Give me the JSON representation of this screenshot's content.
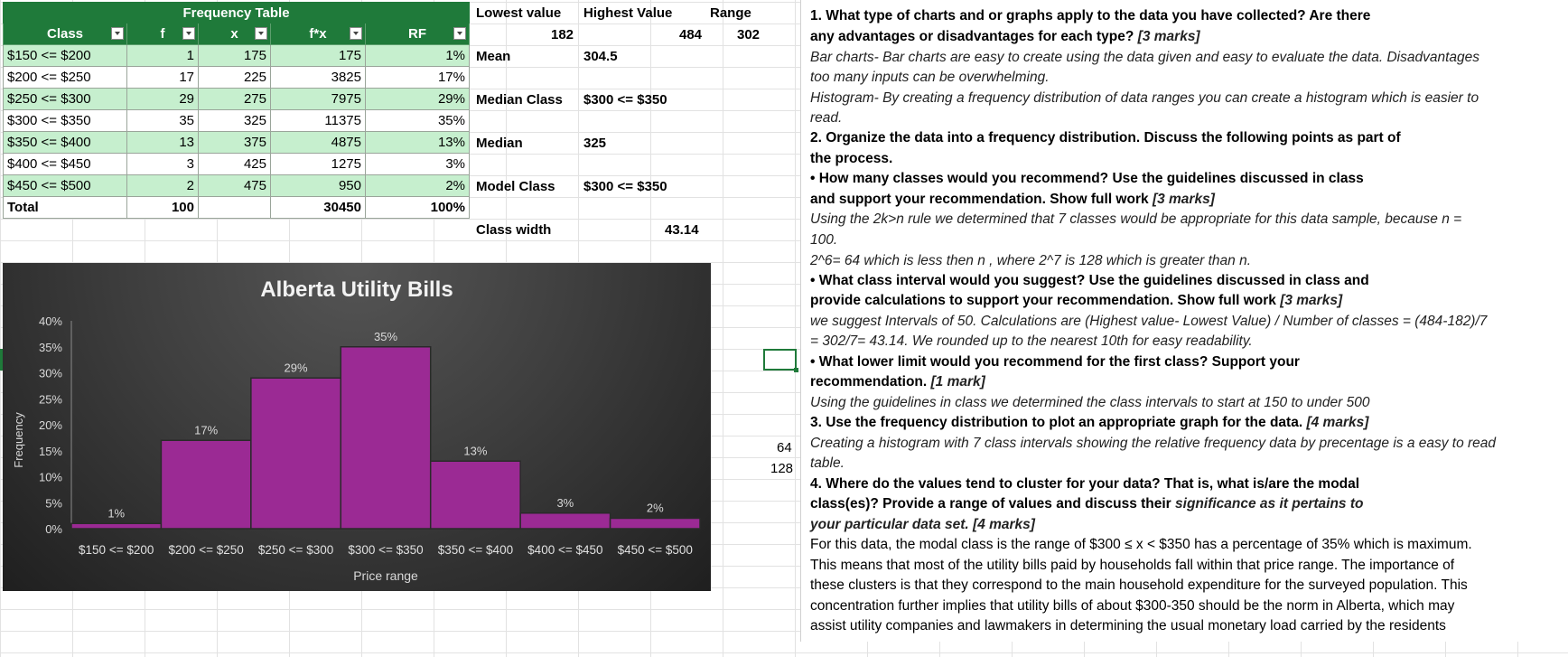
{
  "freq_table": {
    "title": "Frequency Table",
    "headers": [
      "Class",
      "f",
      "x",
      "f*x",
      "RF"
    ],
    "rows": [
      {
        "class": "$150 <= $200",
        "f": "1",
        "x": "175",
        "fx": "175",
        "rf": "1%"
      },
      {
        "class": "$200 <= $250",
        "f": "17",
        "x": "225",
        "fx": "3825",
        "rf": "17%"
      },
      {
        "class": "$250 <= $300",
        "f": "29",
        "x": "275",
        "fx": "7975",
        "rf": "29%"
      },
      {
        "class": "$300 <= $350",
        "f": "35",
        "x": "325",
        "fx": "11375",
        "rf": "35%"
      },
      {
        "class": "$350 <= $400",
        "f": "13",
        "x": "375",
        "fx": "4875",
        "rf": "13%"
      },
      {
        "class": "$400 <= $450",
        "f": "3",
        "x": "425",
        "fx": "1275",
        "rf": "3%"
      },
      {
        "class": "$450 <= $500",
        "f": "2",
        "x": "475",
        "fx": "950",
        "rf": "2%"
      }
    ],
    "total": {
      "label": "Total",
      "f": "100",
      "fx": "30450",
      "rf": "100%"
    }
  },
  "stats": {
    "lowest_label": "Lowest value",
    "lowest_value": "182",
    "highest_label": "Highest Value",
    "highest_value": "484",
    "range_label": "Range",
    "range_value": "302",
    "mean_label": "Mean",
    "mean_value": "304.5",
    "median_class_label": "Median Class",
    "median_class_value": "$300 <= $350",
    "median_label": "Median",
    "median_value": "325",
    "model_class_label": "Model Class",
    "model_class_value": "$300 <= $350",
    "class_width_label": "Class width",
    "class_width_value": "43.14"
  },
  "side_numbers": [
    "64",
    "128"
  ],
  "chart_data": {
    "type": "bar",
    "title": "Alberta Utility Bills",
    "xlabel": "Price range",
    "ylabel": "Frequency",
    "categories": [
      "$150 <= $200",
      "$200 <= $250",
      "$250 <= $300",
      "$300 <= $350",
      "$350 <= $400",
      "$400 <= $450",
      "$450 <= $500"
    ],
    "values": [
      1,
      17,
      29,
      35,
      13,
      3,
      2
    ],
    "data_labels": [
      "1%",
      "17%",
      "29%",
      "35%",
      "13%",
      "3%",
      "2%"
    ],
    "y_ticks": [
      "0%",
      "5%",
      "10%",
      "15%",
      "20%",
      "25%",
      "30%",
      "35%",
      "40%"
    ],
    "ylim": [
      0,
      40
    ],
    "grid": false,
    "bar_color": "#9b2a94"
  },
  "answers": {
    "q1_a": "1. What type of charts and or graphs apply to the data you have collected? Are there",
    "q1_b": "any advantages or disadvantages for each type?",
    "q1_marks": "[3 marks]",
    "a1_1": "Bar charts- Bar charts are easy to create using the data given and easy to evaluate the data. Disadvantages",
    "a1_2": "too many inputs can be overwhelming.",
    "a1_3": "Histogram- By creating a frequency distribution of data ranges you can create a histogram which is easier to",
    "a1_4": "read.",
    "q2_a": "2. Organize the data into a frequency distribution. Discuss the following points as part of",
    "q2_b": "the process.",
    "q2_c": "• How many classes would you recommend? Use the guidelines discussed in class",
    "q2_d": "and support your recommendation. Show full work",
    "q2_d_marks": "[3 marks]",
    "a2_1": "Using the 2k>n  rule we determined that 7 classes would be appropriate for this data sample, because n =",
    "a2_2": "100.",
    "a2_3": "2^6= 64 which is less then n , where 2^7 is 128 which is greater than n.",
    "q2_e": "• What class interval would you suggest? Use the guidelines discussed in class and",
    "q2_f": "provide calculations to support your recommendation. Show full work",
    "q2_f_marks": "[3 marks]",
    "a2_4": "we suggest Intervals of  50. Calculations are (Highest value- Lowest Value) / Number of classes = (484-182)/7",
    "a2_5": "= 302/7= 43.14. We rounded up to the nearest 10th for easy readability.",
    "q2_g": "• What lower limit would you recommend for the first class? Support your",
    "q2_h": "recommendation.",
    "q2_h_marks": "[1 mark]",
    "a2_6": "Using the guidelines in class we determined the class intervals to start at 150 to under 500",
    "q3_a": "3. Use the frequency distribution to plot an appropriate graph for the data.",
    "q3_marks": "[4 marks]",
    "a3_1": "Creating a histogram with 7 class intervals showing the relative frequency data by precentage is a easy to read",
    "a3_2": "table.",
    "q4_a": "4. Where do the values tend to cluster for your data? That is, what is/are the modal",
    "q4_b": "class(es)? Provide a range of values and discuss their",
    "q4_b_it": "significance as it pertains to",
    "q4_c": "your particular data set. [4 marks]",
    "a4_1": "For this data, the modal class is the range of $300 ≤ x < $350 has a percentage of 35% which is maximum.",
    "a4_2": "This means that most of the utility bills paid by households fall within that price range. The importance of",
    "a4_3": "these clusters is that they correspond to the main household expenditure for the surveyed population. This",
    "a4_4": "concentration further implies that utility bills of about $300-350 should be the norm in Alberta, which may",
    "a4_5": "assist utility companies and lawmakers in determining the usual monetary load carried by the residents"
  }
}
